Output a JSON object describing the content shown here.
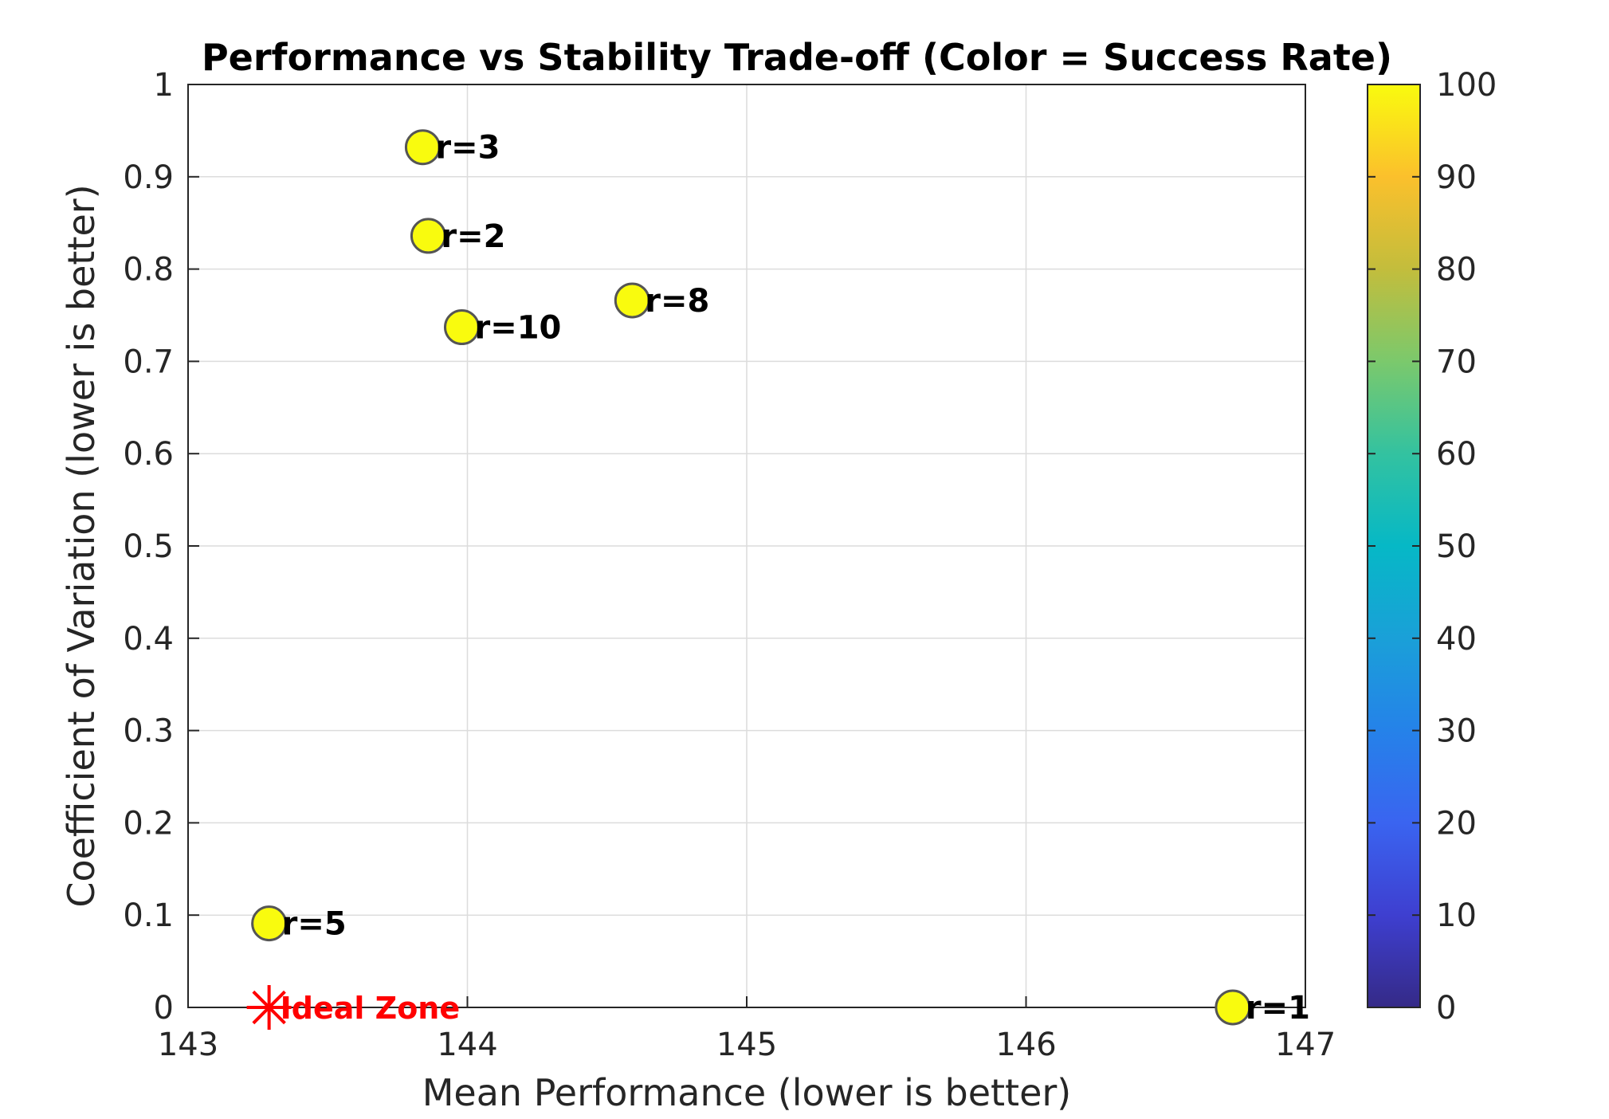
{
  "chart_data": {
    "type": "scatter",
    "title": "Performance vs Stability Trade-off (Color = Success Rate)",
    "xlabel": "Mean Performance (lower is better)",
    "ylabel": "Coefficient of Variation (lower is better)",
    "xlim": [
      143,
      147
    ],
    "ylim": [
      0,
      1
    ],
    "xticks": [
      "143",
      "144",
      "145",
      "146",
      "147"
    ],
    "yticks": [
      "0",
      "0.1",
      "0.2",
      "0.3",
      "0.4",
      "0.5",
      "0.6",
      "0.7",
      "0.8",
      "0.9",
      "1"
    ],
    "grid": true,
    "points": [
      {
        "label": "r=3",
        "x": 143.84,
        "y": 0.932,
        "success_rate": 100
      },
      {
        "label": "r=2",
        "x": 143.86,
        "y": 0.836,
        "success_rate": 100
      },
      {
        "label": "r=10",
        "x": 143.98,
        "y": 0.737,
        "success_rate": 100
      },
      {
        "label": "r=8",
        "x": 144.59,
        "y": 0.766,
        "success_rate": 100
      },
      {
        "label": "r=5",
        "x": 143.29,
        "y": 0.091,
        "success_rate": 100
      },
      {
        "label": "r=1",
        "x": 146.74,
        "y": 0.0,
        "success_rate": 100
      }
    ],
    "annotation": {
      "label": "Ideal Zone",
      "x": 143.29,
      "y": 0.0,
      "marker": "asterisk",
      "color": "#ff0000"
    },
    "colorbar": {
      "label": "Success Rate",
      "range": [
        0,
        100
      ],
      "ticks": [
        "0",
        "10",
        "20",
        "30",
        "40",
        "50",
        "60",
        "70",
        "80",
        "90",
        "100"
      ],
      "colormap": "parula"
    },
    "marker_color": "#f9fb0e",
    "marker_edge": "#555555"
  }
}
